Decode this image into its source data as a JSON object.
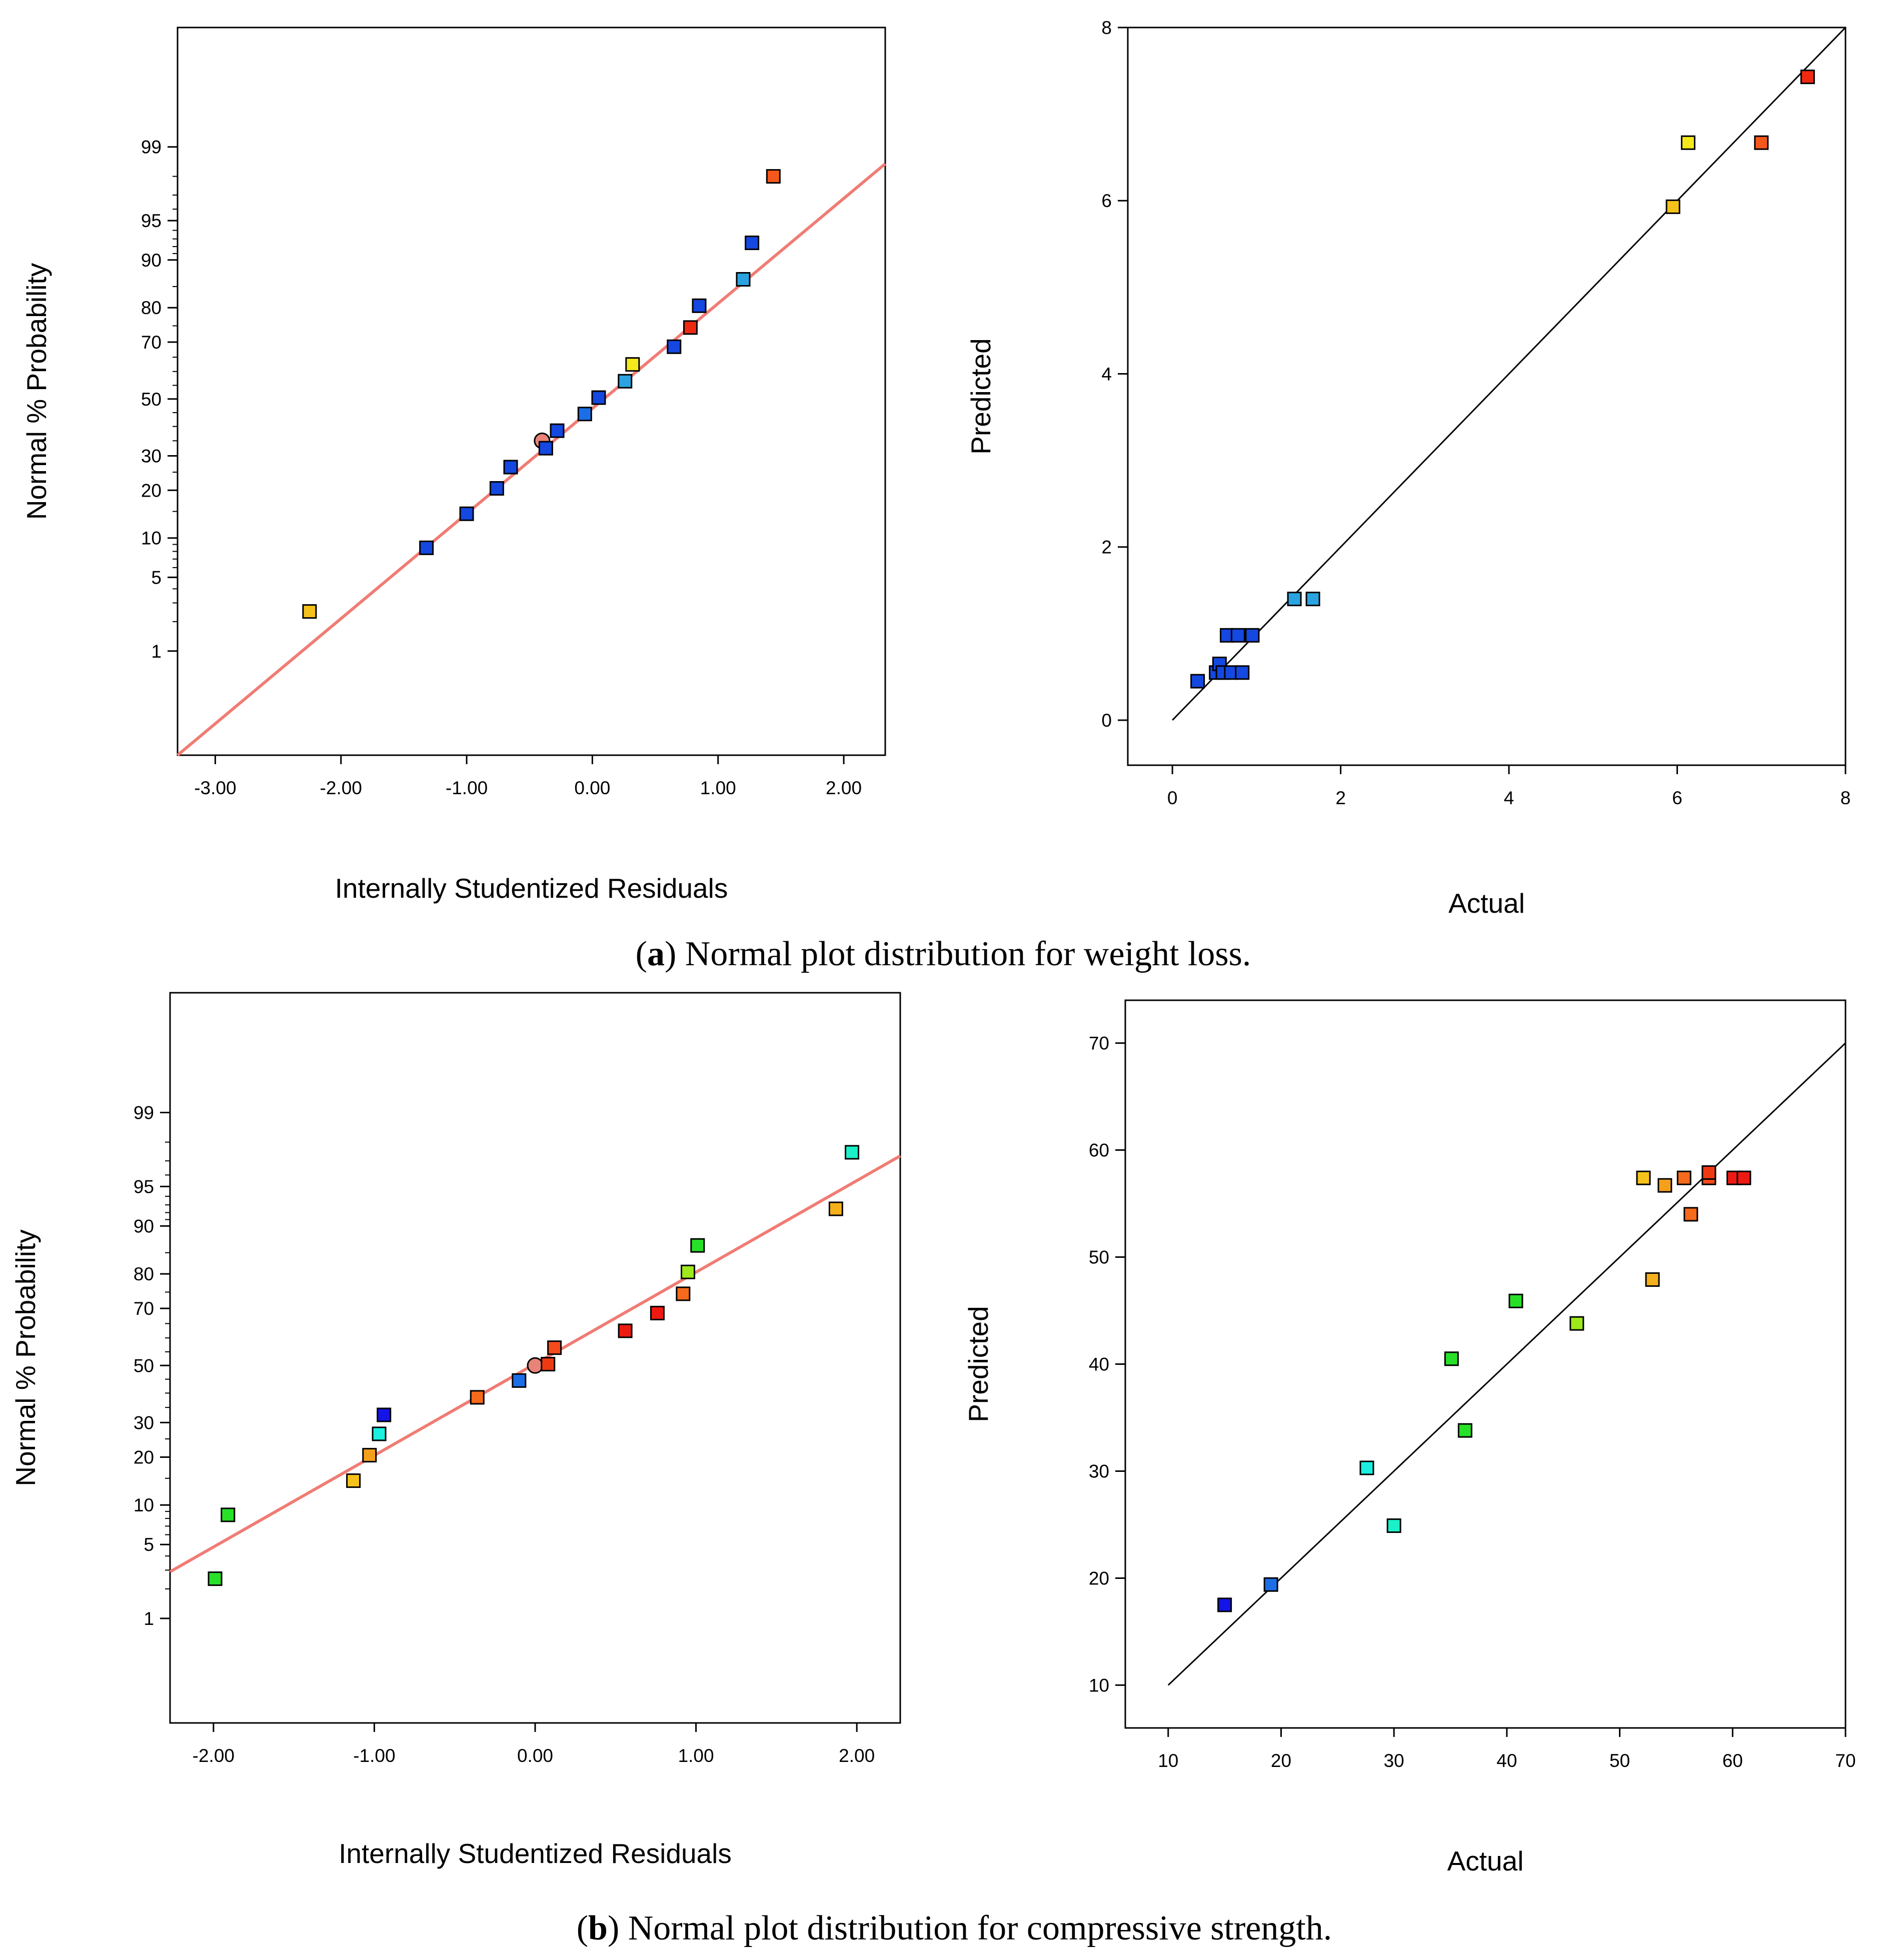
{
  "chart_data": [
    {
      "type": "scatter",
      "subtype": "normal-probability",
      "xlabel": "Internally Studentized Residuals",
      "ylabel": "Normal % Probability",
      "xlim": [
        -3.3,
        2.33
      ],
      "yscale": "probit",
      "ylim": [
        0.05,
        99.97
      ],
      "xticks": [
        "-3.00",
        "-2.00",
        "-1.00",
        "0.00",
        "1.00",
        "2.00"
      ],
      "yticks": [
        "1",
        "5",
        "10",
        "20",
        "30",
        "50",
        "70",
        "80",
        "90",
        "95",
        "99"
      ],
      "fit_line": {
        "color": "#f07c74",
        "points": [
          [
            -3.3,
            0.05
          ],
          [
            2.33,
            98.5
          ]
        ]
      },
      "points": [
        {
          "x": -2.25,
          "y": 2.5,
          "color": "#f5c21b"
        },
        {
          "x": -1.32,
          "y": 8.5,
          "color": "#1448e0"
        },
        {
          "x": -1.0,
          "y": 14.5,
          "color": "#1448e0"
        },
        {
          "x": -0.76,
          "y": 20.5,
          "color": "#1448e0"
        },
        {
          "x": -0.65,
          "y": 26.5,
          "color": "#1448e0"
        },
        {
          "x": -0.4,
          "y": 35,
          "color": "#e8837a",
          "shape": "circle"
        },
        {
          "x": -0.37,
          "y": 32.5,
          "color": "#1448e0"
        },
        {
          "x": -0.28,
          "y": 38.5,
          "color": "#1448e0"
        },
        {
          "x": -0.06,
          "y": 44.5,
          "color": "#1c6ee6"
        },
        {
          "x": 0.05,
          "y": 50.5,
          "color": "#1448e0"
        },
        {
          "x": 0.26,
          "y": 56.5,
          "color": "#2ba3e0"
        },
        {
          "x": 0.32,
          "y": 62.5,
          "color": "#f5e81b"
        },
        {
          "x": 0.65,
          "y": 68.5,
          "color": "#1448e0"
        },
        {
          "x": 0.78,
          "y": 74.5,
          "color": "#ee2a12"
        },
        {
          "x": 0.85,
          "y": 80.5,
          "color": "#1448e0"
        },
        {
          "x": 1.2,
          "y": 86.5,
          "color": "#2ba3e0"
        },
        {
          "x": 1.27,
          "y": 92.5,
          "color": "#1448e0"
        },
        {
          "x": 1.44,
          "y": 98,
          "color": "#f5581b"
        }
      ]
    },
    {
      "type": "scatter",
      "subtype": "predicted-vs-actual",
      "xlabel": "Actual",
      "ylabel": "Predicted",
      "xlim": [
        -0.53,
        8.0
      ],
      "ylim": [
        -0.52,
        8.0
      ],
      "xticks": [
        "0",
        "2",
        "4",
        "6",
        "8"
      ],
      "yticks": [
        "0",
        "2",
        "4",
        "6",
        "8"
      ],
      "fit_line": {
        "color": "#000000",
        "points": [
          [
            0,
            0
          ],
          [
            8,
            8
          ]
        ]
      },
      "points": [
        {
          "x": 0.3,
          "y": 0.45,
          "color": "#1448e0"
        },
        {
          "x": 0.52,
          "y": 0.55,
          "color": "#1448e0"
        },
        {
          "x": 0.56,
          "y": 0.65,
          "color": "#1448e0"
        },
        {
          "x": 0.6,
          "y": 0.55,
          "color": "#1448e0"
        },
        {
          "x": 0.65,
          "y": 0.98,
          "color": "#1448e0"
        },
        {
          "x": 0.7,
          "y": 0.55,
          "color": "#1448e0"
        },
        {
          "x": 0.78,
          "y": 0.98,
          "color": "#1448e0"
        },
        {
          "x": 0.83,
          "y": 0.55,
          "color": "#1448e0"
        },
        {
          "x": 0.95,
          "y": 0.98,
          "color": "#1448e0"
        },
        {
          "x": 1.45,
          "y": 1.4,
          "color": "#2ba3e0"
        },
        {
          "x": 1.67,
          "y": 1.4,
          "color": "#2ba3e0"
        },
        {
          "x": 5.95,
          "y": 5.93,
          "color": "#f5c21b"
        },
        {
          "x": 6.13,
          "y": 6.67,
          "color": "#f5e81b"
        },
        {
          "x": 7.0,
          "y": 6.67,
          "color": "#f5581b"
        },
        {
          "x": 7.55,
          "y": 7.43,
          "color": "#ee2a12"
        }
      ]
    },
    {
      "type": "scatter",
      "subtype": "normal-probability",
      "xlabel": "Internally Studentized Residuals",
      "ylabel": "Normal % Probability",
      "xlim": [
        -2.27,
        2.27
      ],
      "yscale": "probit",
      "ylim": [
        0.05,
        99.97
      ],
      "xticks": [
        "-2.00",
        "-1.00",
        "0.00",
        "1.00",
        "2.00"
      ],
      "yticks": [
        "1",
        "5",
        "10",
        "20",
        "30",
        "50",
        "70",
        "80",
        "90",
        "95",
        "99"
      ],
      "fit_line": {
        "color": "#f07c74",
        "points": [
          [
            -2.27,
            2.9
          ],
          [
            2.27,
            97.3
          ]
        ]
      },
      "points": [
        {
          "x": -1.99,
          "y": 2.5,
          "color": "#28e028"
        },
        {
          "x": -1.91,
          "y": 8.5,
          "color": "#28e028"
        },
        {
          "x": -1.13,
          "y": 14.5,
          "color": "#f5c21b"
        },
        {
          "x": -1.03,
          "y": 20.5,
          "color": "#f5a01b"
        },
        {
          "x": -0.97,
          "y": 26.5,
          "color": "#1bf0e0"
        },
        {
          "x": -0.94,
          "y": 32.5,
          "color": "#1414e8"
        },
        {
          "x": -0.36,
          "y": 38.5,
          "color": "#f56a1b"
        },
        {
          "x": -0.1,
          "y": 44.5,
          "color": "#1c6ee6"
        },
        {
          "x": 0.0,
          "y": 50,
          "color": "#e8837a",
          "shape": "circle"
        },
        {
          "x": 0.08,
          "y": 50.5,
          "color": "#ee3a12"
        },
        {
          "x": 0.12,
          "y": 56.5,
          "color": "#f54a1b"
        },
        {
          "x": 0.56,
          "y": 62.5,
          "color": "#ee1a12"
        },
        {
          "x": 0.76,
          "y": 68.5,
          "color": "#ee1a12"
        },
        {
          "x": 0.92,
          "y": 74.5,
          "color": "#f56a1b"
        },
        {
          "x": 0.95,
          "y": 80.5,
          "color": "#9ee81b"
        },
        {
          "x": 1.01,
          "y": 86.5,
          "color": "#28e028"
        },
        {
          "x": 1.87,
          "y": 92.5,
          "color": "#f5b01b"
        },
        {
          "x": 1.97,
          "y": 97.5,
          "color": "#1bf0c8"
        }
      ]
    },
    {
      "type": "scatter",
      "subtype": "predicted-vs-actual",
      "xlabel": "Actual",
      "ylabel": "Predicted",
      "xlim": [
        6.2,
        70.0
      ],
      "ylim": [
        6.0,
        74.0
      ],
      "xticks": [
        "10",
        "20",
        "30",
        "40",
        "50",
        "60",
        "70"
      ],
      "yticks": [
        "10",
        "20",
        "30",
        "40",
        "50",
        "60",
        "70"
      ],
      "fit_line": {
        "color": "#000000",
        "points": [
          [
            10,
            10
          ],
          [
            70,
            70
          ]
        ]
      },
      "points": [
        {
          "x": 15.0,
          "y": 17.5,
          "color": "#1414e8"
        },
        {
          "x": 19.1,
          "y": 19.4,
          "color": "#1c6ee6"
        },
        {
          "x": 27.6,
          "y": 30.3,
          "color": "#1bf0e0"
        },
        {
          "x": 30.0,
          "y": 24.9,
          "color": "#1bf0c8"
        },
        {
          "x": 35.1,
          "y": 40.5,
          "color": "#28e028"
        },
        {
          "x": 36.3,
          "y": 33.8,
          "color": "#28e028"
        },
        {
          "x": 40.8,
          "y": 45.9,
          "color": "#28e028"
        },
        {
          "x": 46.2,
          "y": 43.8,
          "color": "#9ee81b"
        },
        {
          "x": 52.1,
          "y": 57.4,
          "color": "#f5c21b"
        },
        {
          "x": 52.9,
          "y": 47.9,
          "color": "#f5b01b"
        },
        {
          "x": 54.0,
          "y": 56.7,
          "color": "#f5a01b"
        },
        {
          "x": 55.7,
          "y": 57.4,
          "color": "#f56a1b"
        },
        {
          "x": 56.3,
          "y": 54.0,
          "color": "#f56a1b"
        },
        {
          "x": 57.9,
          "y": 57.4,
          "color": "#f54a1b"
        },
        {
          "x": 57.9,
          "y": 57.9,
          "color": "#ee3a12"
        },
        {
          "x": 60.1,
          "y": 57.4,
          "color": "#ee1a12"
        },
        {
          "x": 61.0,
          "y": 57.4,
          "color": "#ee1a12"
        }
      ]
    }
  ],
  "captions": [
    {
      "label": "a",
      "text": ") Normal plot distribution for weight loss."
    },
    {
      "label": "b",
      "text": ") Normal plot distribution for compressive strength."
    }
  ]
}
